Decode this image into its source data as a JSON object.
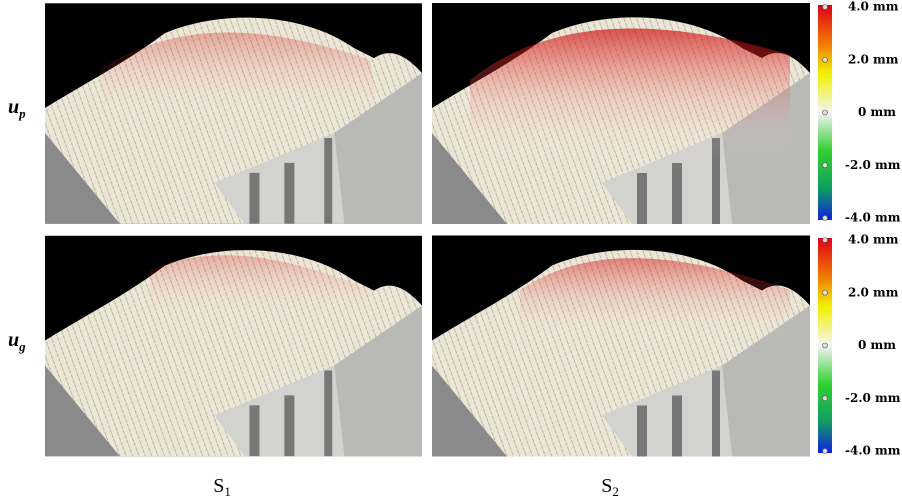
{
  "rows": [
    {
      "symbol": "u",
      "subscript": "p"
    },
    {
      "symbol": "u",
      "subscript": "g"
    }
  ],
  "columns": [
    {
      "symbol": "S",
      "subscript": "1"
    },
    {
      "symbol": "S",
      "subscript": "2"
    }
  ],
  "colorbar": {
    "labels": [
      "4.0 mm",
      "2.0 mm",
      "0 mm",
      "-2.0 mm",
      "-4.0 mm"
    ]
  }
}
